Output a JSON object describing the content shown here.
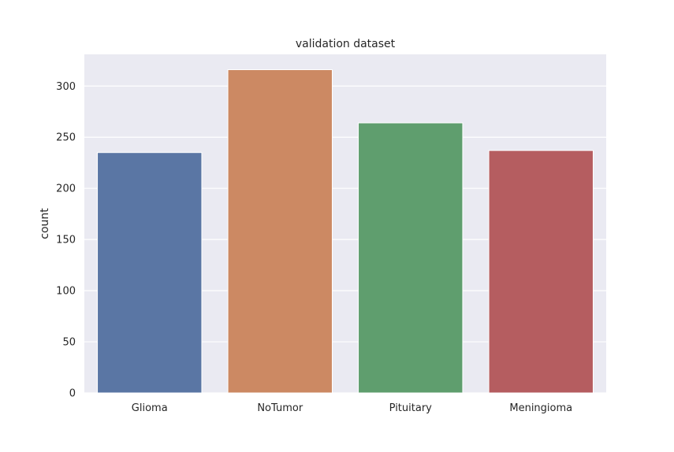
{
  "chart_data": {
    "type": "bar",
    "title": "validation dataset",
    "xlabel": "",
    "ylabel": "count",
    "categories": [
      "Glioma",
      "NoTumor",
      "Pituitary",
      "Meningioma"
    ],
    "values": [
      235,
      316,
      264,
      237
    ],
    "colors": [
      "#5a76a4",
      "#cc8963",
      "#5f9e6e",
      "#b55d60"
    ],
    "ylim": [
      0,
      331
    ],
    "yticks": [
      0,
      50,
      100,
      150,
      200,
      250,
      300
    ],
    "grid": true,
    "background": "#eaeaf2",
    "legend": "none"
  }
}
